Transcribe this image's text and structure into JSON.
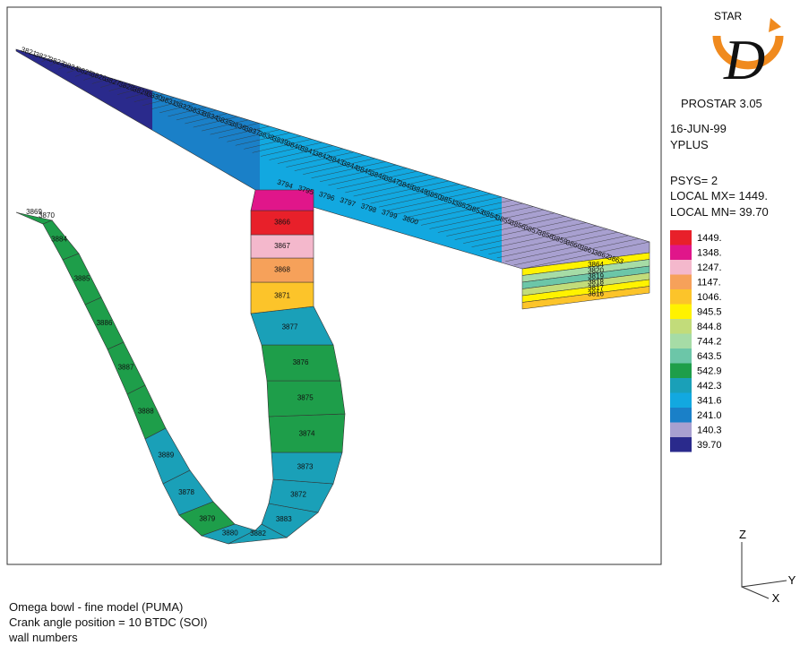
{
  "logo": {
    "brand": "STAR",
    "letter": "D",
    "product": "PROSTAR 3.05"
  },
  "info": {
    "date": "16-JUN-99",
    "variable": "YPLUS",
    "psys": "PSYS= 2",
    "local_max": "LOCAL MX= 1449.",
    "local_min": "LOCAL MN= 39.70"
  },
  "legend": {
    "levels": [
      {
        "label": "1449.",
        "color": "#e8202a"
      },
      {
        "label": "1348.",
        "color": "#e0168a"
      },
      {
        "label": "1247.",
        "color": "#f4b8cc"
      },
      {
        "label": "1147.",
        "color": "#f6a15a"
      },
      {
        "label": "1046.",
        "color": "#fcc42a"
      },
      {
        "label": "945.5",
        "color": "#fff200"
      },
      {
        "label": "844.8",
        "color": "#c2dc7a"
      },
      {
        "label": "744.2",
        "color": "#a6dca6"
      },
      {
        "label": "643.5",
        "color": "#6cc6a8"
      },
      {
        "label": "542.9",
        "color": "#1e9e4a"
      },
      {
        "label": "442.3",
        "color": "#1aa0b8"
      },
      {
        "label": "341.6",
        "color": "#12a8e0"
      },
      {
        "label": "241.0",
        "color": "#1a80c8"
      },
      {
        "label": "140.3",
        "color": "#a8a0d0"
      },
      {
        "label": "39.70",
        "color": "#2a2a8c"
      }
    ]
  },
  "axes": {
    "z": "Z",
    "y": "Y",
    "x": "X"
  },
  "footer": [
    "Omega bowl - fine model (PUMA)",
    "Crank angle position = 10  BTDC (SOI)",
    "wall numbers"
  ],
  "strip_numbers": [
    "3821",
    "3822",
    "3823",
    "3824",
    "3825",
    "3826",
    "3827",
    "3828",
    "3829",
    "3830",
    "3831",
    "3832",
    "3833",
    "3834",
    "3835",
    "3836",
    "3837",
    "3838",
    "3839",
    "3840",
    "3841",
    "3842",
    "3843",
    "3844",
    "3845",
    "3846",
    "3847",
    "3848",
    "3849",
    "3850",
    "3851",
    "3852",
    "3853",
    "3854",
    "3855",
    "3856",
    "3857",
    "3858",
    "3859",
    "3860",
    "3861",
    "3862",
    "3863"
  ],
  "inner_numbers": [
    "3794",
    "3795",
    "3796",
    "3797",
    "3798",
    "3799",
    "3800"
  ],
  "box_numbers": [
    "3864",
    "3820",
    "3819",
    "3818",
    "3817",
    "3816"
  ],
  "u_numbers": [
    "3869",
    "3870",
    "3884",
    "3885",
    "3886",
    "3887",
    "3888",
    "3889",
    "3878",
    "3879",
    "3880",
    "3882",
    "3883",
    "3872",
    "3873",
    "3874",
    "3875",
    "3876",
    "3877",
    "3871",
    "3868",
    "3867",
    "3866"
  ]
}
